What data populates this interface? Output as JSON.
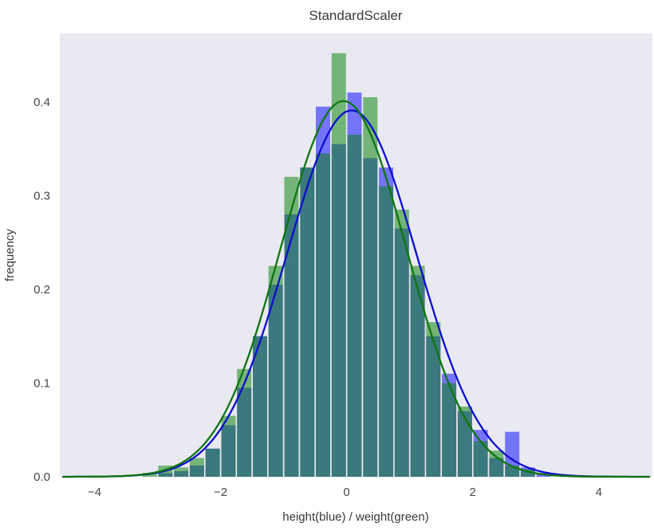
{
  "title": "StandardScaler",
  "chart_data": {
    "type": "bar",
    "subtype": "overlaid-histograms-with-kde",
    "title": "StandardScaler",
    "xlabel": "height(blue) / weight(green)",
    "ylabel": "frequency",
    "xlim": [
      -4.55,
      4.85
    ],
    "ylim": [
      0,
      0.473
    ],
    "xticks": [
      -4,
      -2,
      0,
      2,
      4
    ],
    "yticks": [
      0.0,
      0.1,
      0.2,
      0.3,
      0.4
    ],
    "grid": false,
    "legend_position": "none",
    "plot_bg": "#e9e9f1",
    "bin_start": -3.25,
    "bin_width": 0.25,
    "bin_centers": [
      -3.125,
      -2.875,
      -2.625,
      -2.375,
      -2.125,
      -1.875,
      -1.625,
      -1.375,
      -1.125,
      -0.875,
      -0.625,
      -0.375,
      -0.125,
      0.125,
      0.375,
      0.625,
      0.875,
      1.125,
      1.375,
      1.625,
      1.875,
      2.125,
      2.375,
      2.625,
      2.875,
      3.125
    ],
    "series": [
      {
        "name": "height (blue)",
        "bar_color": "#0000ff",
        "bar_opacity": 0.5,
        "values": [
          0.0,
          0.004,
          0.006,
          0.012,
          0.03,
          0.055,
          0.095,
          0.15,
          0.205,
          0.28,
          0.33,
          0.395,
          0.355,
          0.41,
          0.34,
          0.33,
          0.265,
          0.215,
          0.15,
          0.11,
          0.07,
          0.05,
          0.02,
          0.048,
          0.01,
          0.004
        ]
      },
      {
        "name": "weight (green)",
        "bar_color": "#008000",
        "bar_opacity": 0.5,
        "values": [
          0.004,
          0.012,
          0.01,
          0.02,
          0.03,
          0.065,
          0.115,
          0.15,
          0.225,
          0.32,
          0.33,
          0.345,
          0.452,
          0.365,
          0.405,
          0.31,
          0.285,
          0.225,
          0.165,
          0.1,
          0.075,
          0.038,
          0.028,
          0.012,
          0.008,
          0.0
        ]
      }
    ],
    "kde_curves": [
      {
        "name": "height kde",
        "color": "#0d0dcf",
        "mean": 0.08,
        "std": 1.03,
        "peak": 0.391
      },
      {
        "name": "weight kde",
        "color": "#0e750e",
        "mean": -0.05,
        "std": 1.0,
        "peak": 0.401
      }
    ]
  }
}
